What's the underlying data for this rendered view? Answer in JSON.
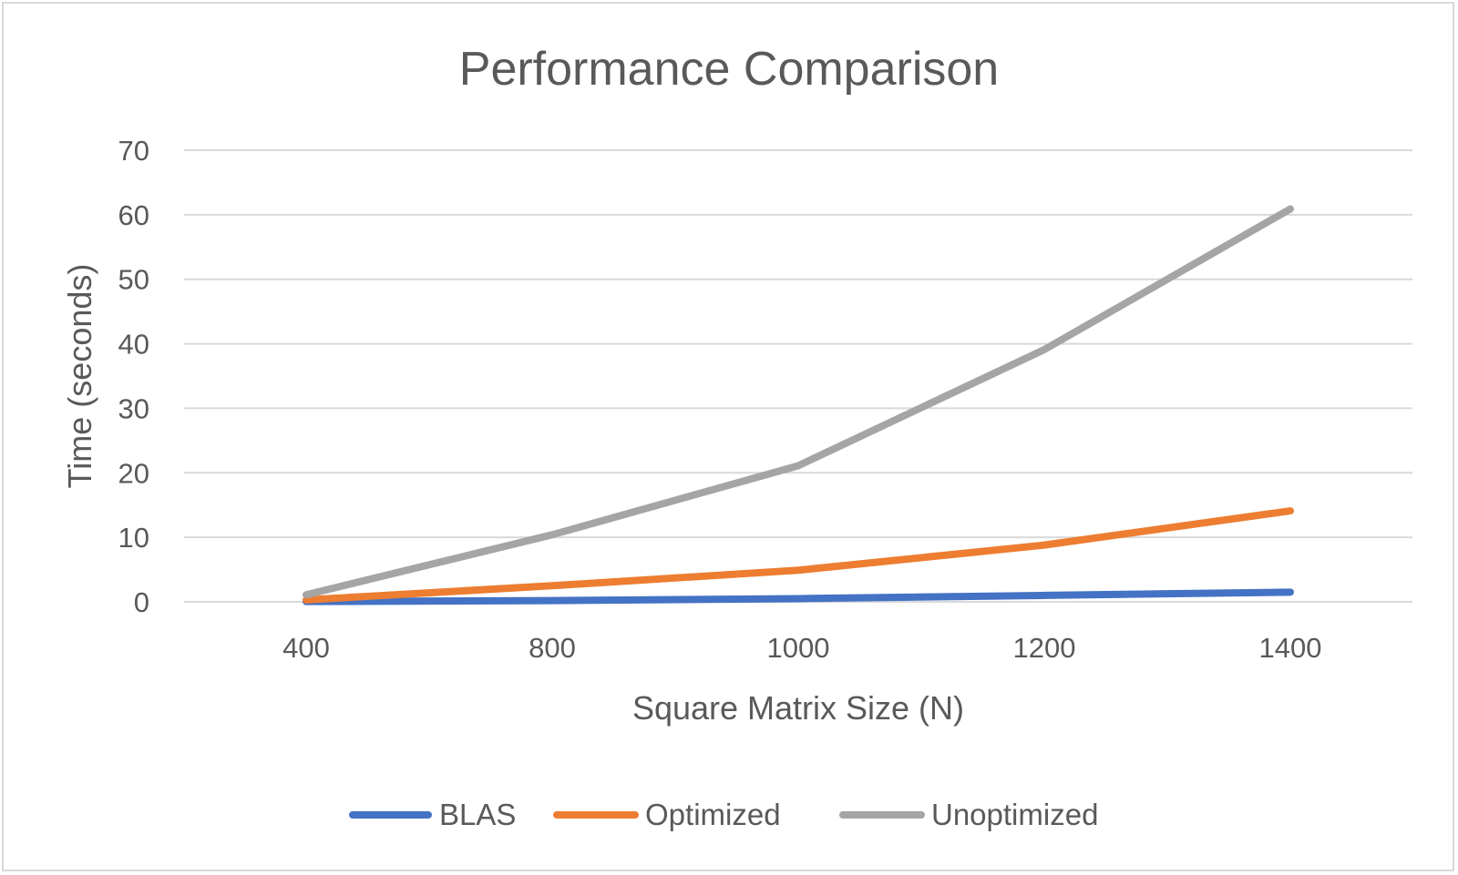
{
  "chart_data": {
    "type": "line",
    "title": "Performance Comparison",
    "xlabel": "Square Matrix Size (N)",
    "ylabel": "Time (seconds)",
    "categories": [
      "400",
      "800",
      "1000",
      "1200",
      "1400"
    ],
    "ylim": [
      0,
      70
    ],
    "yticks": [
      "0",
      "10",
      "20",
      "30",
      "40",
      "50",
      "60",
      "70"
    ],
    "grid": true,
    "legend_position": "bottom",
    "series": [
      {
        "name": "BLAS",
        "color": "#4472c4",
        "values": [
          0.05,
          0.2,
          0.5,
          1.0,
          1.5
        ]
      },
      {
        "name": "Optimized",
        "color": "#ed7d31",
        "values": [
          0.3,
          2.5,
          4.9,
          8.8,
          14.1
        ]
      },
      {
        "name": "Unoptimized",
        "color": "#a5a5a5",
        "values": [
          1.1,
          10.4,
          21.1,
          39.1,
          60.9
        ]
      }
    ]
  }
}
